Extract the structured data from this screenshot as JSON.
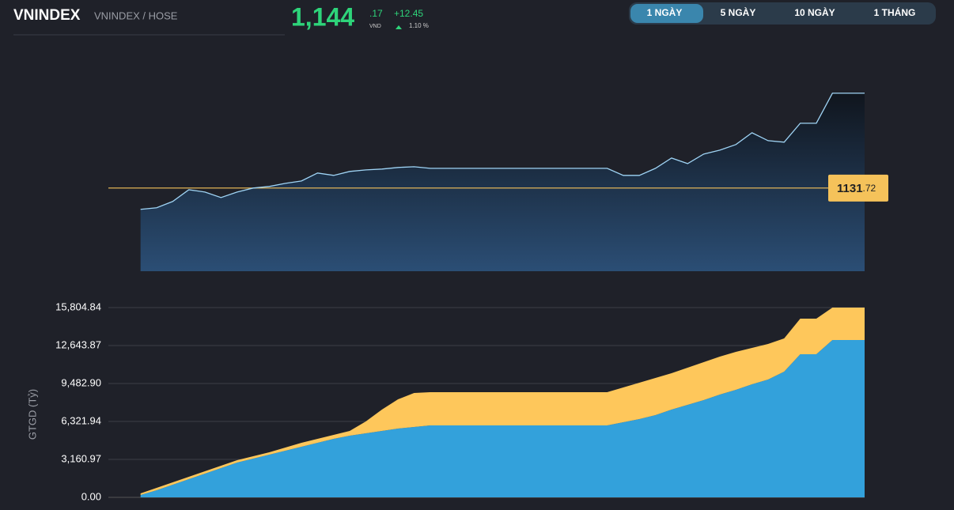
{
  "header": {
    "symbol": "VNINDEX",
    "exchange": "VNINDEX / HOSE",
    "price": "1,144",
    "price_decimal": ".17",
    "currency": "VND",
    "change": "+12.45",
    "change_pct": "1.10 %"
  },
  "tabs": [
    "1 NGÀY",
    "5 NGÀY",
    "10 NGÀY",
    "1 THÁNG"
  ],
  "active_tab": 0,
  "chart_data": [
    {
      "type": "line",
      "color": "#9fd4f5",
      "values": [
        null,
        null,
        1128.92,
        1129.13,
        1129.96,
        1131.5,
        1131.2,
        1130.47,
        1131.2,
        1131.72,
        1131.93,
        1132.34,
        1132.65,
        1133.69,
        1133.38,
        1133.9,
        1134.1,
        1134.21,
        1134.42,
        1134.52,
        1134.31,
        1134.31,
        1134.31,
        1134.31,
        1134.31,
        1134.31,
        1134.31,
        1134.31,
        1134.31,
        1134.31,
        1134.31,
        1134.31,
        1133.38,
        1133.38,
        1134.31,
        1135.66,
        1134.93,
        1136.18,
        1136.7,
        1137.43,
        1138.98,
        1137.94,
        1137.74,
        1140.23,
        1140.23,
        1144.17,
        1144.17,
        1144.17
      ],
      "ylim": [
        1120.8,
        1150.7
      ],
      "reference": {
        "value": 1131.72,
        "label": "1131",
        "label_decimal": ".72",
        "color": "#f5c25a"
      }
    },
    {
      "type": "stacked-area",
      "y_label": "GTGD (Tỷ)",
      "grid": true,
      "ylim": [
        0,
        15804.84
      ],
      "yticks": [
        {
          "value": 0,
          "label": "0.00"
        },
        {
          "value": 3160.97,
          "label": "3,160.97"
        },
        {
          "value": 6321.94,
          "label": "6,321.94"
        },
        {
          "value": 9482.9,
          "label": "9,482.90"
        },
        {
          "value": 12643.87,
          "label": "12,643.87"
        },
        {
          "value": 15804.84,
          "label": "15,804.84"
        }
      ],
      "series": [
        {
          "color": "#33a1db",
          "values": [
            null,
            null,
            198,
            593,
            1054,
            1515,
            1976,
            2436,
            2897,
            3227,
            3556,
            3885,
            4214,
            4544,
            4873,
            5136,
            5334,
            5531,
            5729,
            5861,
            5992,
            5992,
            5992,
            5992,
            5992,
            5992,
            5992,
            5992,
            5992,
            5992,
            5992,
            5992,
            6256,
            6519,
            6848,
            7309,
            7705,
            8100,
            8561,
            8956,
            9417,
            9812,
            10470,
            11919,
            11919,
            13104,
            13104,
            13104
          ]
        },
        {
          "color": "#fec75b",
          "values": [
            null,
            null,
            132,
            198,
            198,
            198,
            198,
            198,
            198,
            198,
            198,
            263,
            329,
            329,
            329,
            395,
            988,
            1778,
            2436,
            2832,
            2766,
            2766,
            2766,
            2766,
            2766,
            2766,
            2766,
            2766,
            2766,
            2766,
            2766,
            2766,
            2897,
            3029,
            3095,
            3029,
            3095,
            3161,
            3161,
            3161,
            3029,
            2963,
            2766,
            2963,
            2963,
            2700,
            2700,
            2700
          ]
        }
      ]
    }
  ]
}
